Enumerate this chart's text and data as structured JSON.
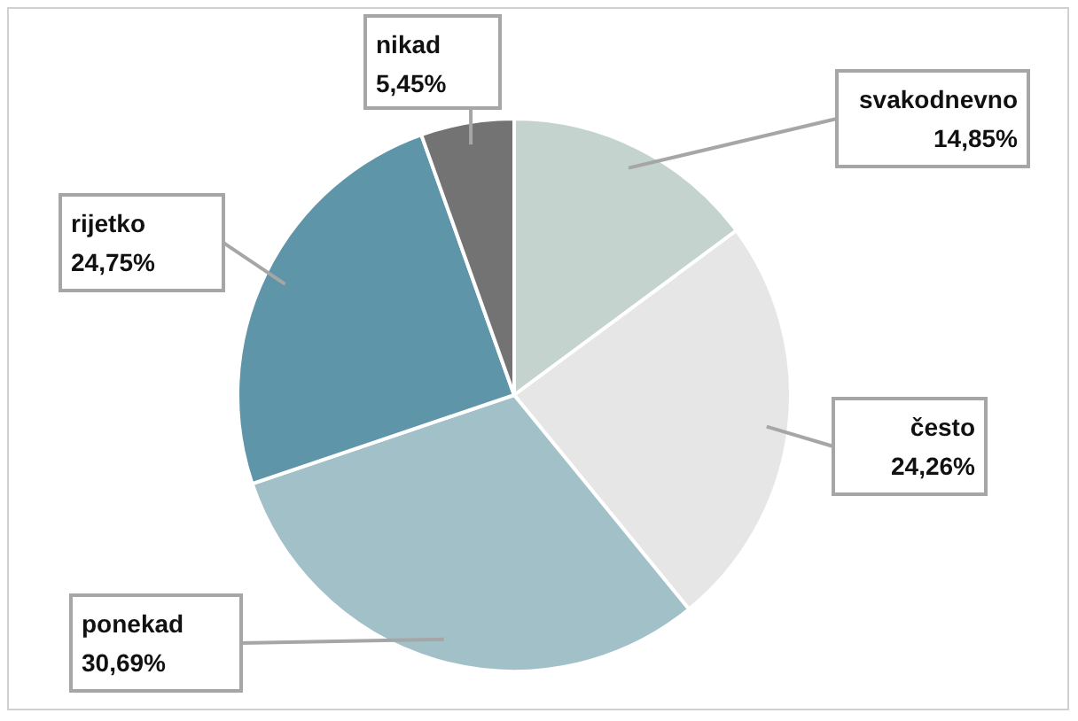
{
  "chart_data": {
    "type": "pie",
    "categories": [
      "svakodnevno",
      "često",
      "ponekad",
      "rijetko",
      "nikad"
    ],
    "values": [
      14.85,
      24.26,
      30.69,
      24.75,
      5.45
    ],
    "value_labels": [
      "14,85%",
      "24,26%",
      "30,69%",
      "24,75%",
      "5,45%"
    ],
    "colors": [
      "#c5d3cf",
      "#e6e6e6",
      "#a2c0c8",
      "#5e95a8",
      "#737373"
    ],
    "legend": false
  }
}
